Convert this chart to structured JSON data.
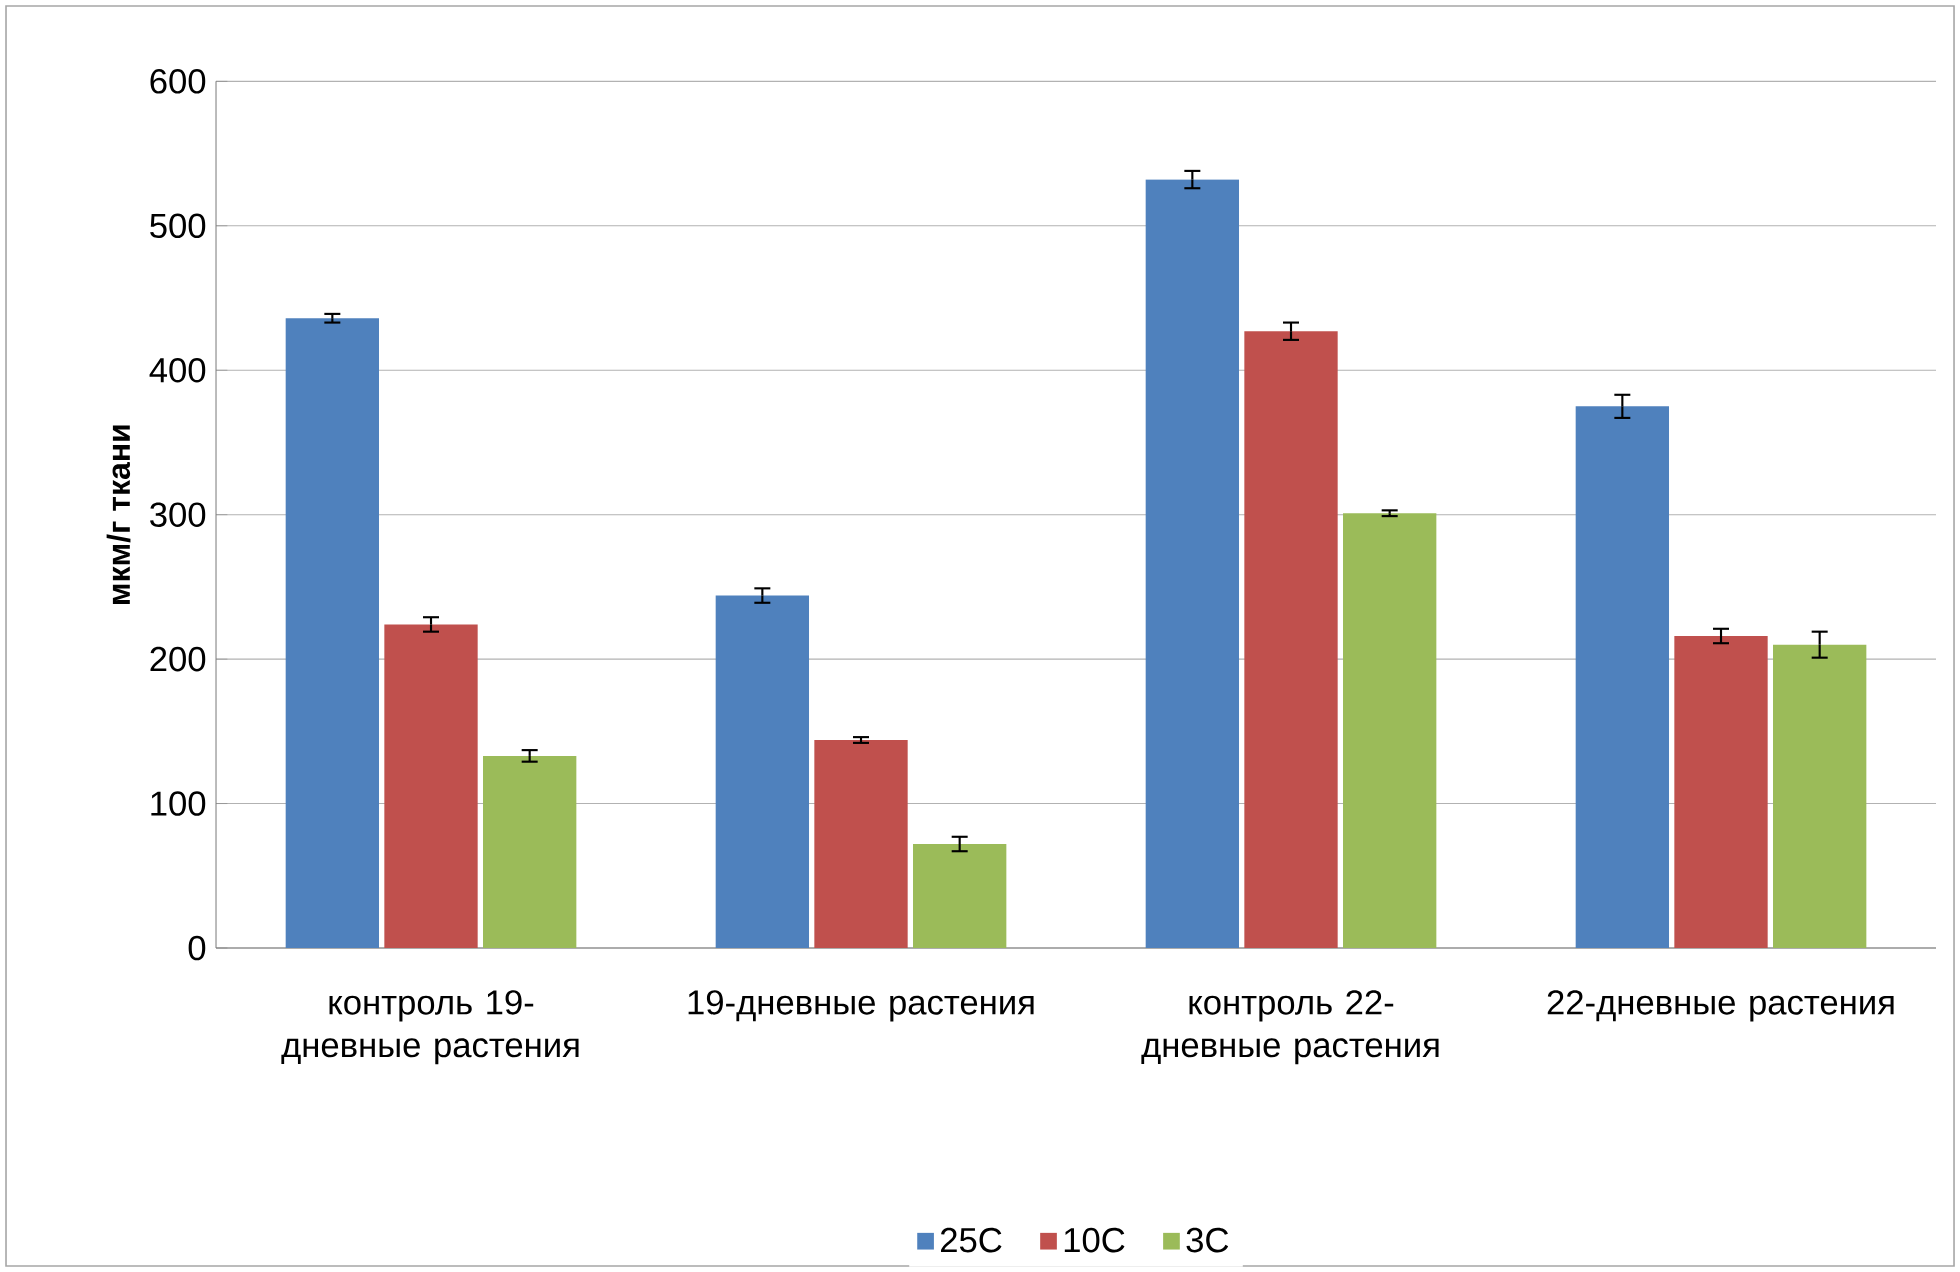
{
  "chart_data": {
    "type": "bar",
    "ylabel": "мкм/г ткани",
    "categories": [
      "контроль 19-дневные растения",
      "19-дневные растения",
      "контроль 22-дневные растения",
      "22-дневные растения"
    ],
    "series": [
      {
        "name": "25C",
        "color": "#4f81bd",
        "values": [
          436,
          244,
          532,
          375
        ],
        "errors": [
          3,
          5,
          6,
          8
        ]
      },
      {
        "name": "10C",
        "color": "#c0504d",
        "values": [
          224,
          144,
          427,
          216
        ],
        "errors": [
          5,
          2,
          6,
          5
        ]
      },
      {
        "name": "3C",
        "color": "#9bbb59",
        "values": [
          133,
          72,
          301,
          210
        ],
        "errors": [
          4,
          5,
          2,
          9
        ]
      }
    ],
    "ylim": [
      0,
      600
    ],
    "yticks": [
      0,
      100,
      200,
      300,
      400,
      500,
      600
    ],
    "grid": "y",
    "legend": "bottom"
  }
}
